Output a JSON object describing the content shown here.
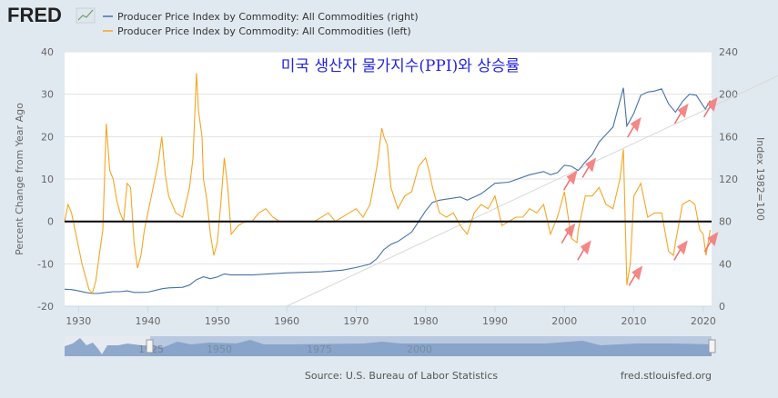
{
  "header": {
    "logo_text": "FRED",
    "legend": [
      {
        "label": "Producer Price Index by Commodity: All Commodities (right)",
        "color": "#4572a7"
      },
      {
        "label": "Producer Price Index by Commodity: All Commodities (left)",
        "color": "#f5a623"
      }
    ]
  },
  "footer": {
    "source": "Source: U.S. Bureau of Labor Statistics",
    "site": "fred.stlouisfed.org"
  },
  "navigator": {
    "labels": [
      "1925",
      "1950",
      "1975",
      "2000"
    ]
  },
  "chart_data": {
    "type": "line",
    "title": "미국 생산자 물가지수(PPI)와 상승률",
    "ylabel_left": "Percent Change from Year Ago",
    "ylabel_right": "Index 1982=100",
    "xlim": [
      1928,
      2021.2
    ],
    "ylim_left": [
      -20,
      40
    ],
    "ylim_right": [
      0,
      240
    ],
    "yticks_left": [
      "40",
      "30",
      "20",
      "10",
      "0",
      "-10",
      "-20"
    ],
    "yticks_right": [
      "240",
      "200",
      "160",
      "120",
      "80",
      "40",
      "0"
    ],
    "xticks": [
      "1930",
      "1940",
      "1950",
      "1960",
      "1970",
      "1980",
      "1990",
      "2000",
      "2010",
      "2020"
    ],
    "grid": true,
    "series": [
      {
        "name": "Producer Price Index by Commodity: All Commodities (right)",
        "axis": "right",
        "color": "#4572a7",
        "x": [
          1928,
          1929,
          1930,
          1931,
          1932,
          1933,
          1934,
          1935,
          1936,
          1937,
          1938,
          1939,
          1940,
          1941,
          1942,
          1943,
          1945,
          1946,
          1947,
          1948,
          1949,
          1950,
          1951,
          1952,
          1955,
          1960,
          1965,
          1968,
          1970,
          1972,
          1973,
          1974,
          1975,
          1976,
          1978,
          1980,
          1981,
          1982,
          1985,
          1986,
          1988,
          1990,
          1992,
          1995,
          1997,
          1998,
          1999,
          2000,
          2001,
          2002,
          2003,
          2004,
          2005,
          2006,
          2007,
          2008.5,
          2009,
          2010,
          2011,
          2012,
          2013,
          2014,
          2015,
          2016,
          2017,
          2018,
          2019,
          2020.3,
          2021
        ],
        "values": [
          16,
          15.7,
          14.5,
          13,
          12,
          12.2,
          13,
          13.7,
          13.7,
          14.5,
          13,
          13,
          13.3,
          14.8,
          16.5,
          17.3,
          17.8,
          20,
          25,
          27.8,
          26,
          27.5,
          30.5,
          29.5,
          29.5,
          31.5,
          32.5,
          34,
          36.5,
          39.8,
          45,
          53.5,
          58.4,
          61,
          69.9,
          89.8,
          98,
          100,
          103,
          100,
          106,
          116,
          117,
          124,
          127,
          124,
          126,
          133,
          132,
          128,
          136,
          143,
          155,
          162,
          169,
          206,
          170,
          182,
          199,
          202,
          203,
          205,
          191,
          183,
          193,
          200,
          199,
          186,
          194
        ]
      },
      {
        "name": "Producer Price Index by Commodity: All Commodities (left)",
        "axis": "left",
        "color": "#f5a623",
        "x": [
          1928,
          1928.5,
          1929,
          1929.5,
          1930,
          1930.5,
          1931,
          1931.5,
          1932,
          1932.5,
          1933,
          1933.5,
          1934,
          1934.5,
          1935,
          1935.5,
          1936,
          1936.5,
          1937,
          1937.5,
          1938,
          1938.5,
          1939,
          1939.5,
          1940,
          1941,
          1941.5,
          1942,
          1942.5,
          1943,
          1944,
          1945,
          1946,
          1946.5,
          1947,
          1947.3,
          1947.8,
          1948,
          1948.5,
          1949,
          1949.5,
          1950,
          1950.5,
          1951,
          1951.5,
          1952,
          1953,
          1954,
          1955,
          1956,
          1957,
          1958,
          1959,
          1960,
          1962,
          1964,
          1966,
          1967,
          1969,
          1970,
          1971,
          1972,
          1973,
          1973.7,
          1974,
          1974.5,
          1975,
          1976,
          1977,
          1978,
          1979,
          1980,
          1980.5,
          1981,
          1982,
          1983,
          1984,
          1985,
          1986,
          1987,
          1988,
          1989,
          1990,
          1991,
          1992,
          1993,
          1994,
          1995,
          1996,
          1997,
          1998,
          1999,
          2000,
          2001,
          2001.8,
          2002,
          2003,
          2004,
          2005,
          2006,
          2007,
          2008,
          2008.5,
          2009,
          2009.5,
          2010,
          2011,
          2012,
          2013,
          2014,
          2015,
          2015.7,
          2016,
          2017,
          2018,
          2018.8,
          2019.5,
          2020,
          2020.4,
          2021
        ],
        "values": [
          0,
          4,
          2,
          -2,
          -6,
          -10,
          -13,
          -16,
          -17,
          -14,
          -8,
          -2,
          23,
          12,
          10,
          5,
          2,
          0,
          9,
          8,
          -5,
          -11,
          -8,
          -2,
          2,
          10,
          14,
          20,
          11,
          6,
          2,
          1,
          8,
          15,
          35,
          26,
          20,
          10,
          5,
          -3,
          -8,
          -5,
          4,
          15,
          8,
          -3,
          -1,
          0,
          0,
          2,
          3,
          1,
          0,
          0,
          0,
          0,
          2,
          0,
          2,
          3,
          1,
          4,
          13,
          22,
          20,
          18,
          8,
          3,
          6,
          7,
          13,
          15,
          12,
          8,
          2,
          1,
          2,
          -1,
          -3,
          2,
          4,
          3,
          6,
          -1,
          0,
          1,
          1,
          3,
          2,
          4,
          -3,
          1,
          7,
          -4,
          -5,
          -2,
          6,
          6,
          8,
          4,
          3,
          10,
          17,
          -15,
          -10,
          6,
          9,
          1,
          2,
          2,
          -7,
          -8,
          -5,
          4,
          5,
          4,
          -2,
          -3,
          -8,
          -2
        ]
      },
      {
        "name": "Zero line",
        "axis": "left",
        "color": "#000000",
        "x": [
          1928,
          2021.2
        ],
        "values": [
          0,
          0
        ]
      }
    ],
    "annotations": {
      "arrows": [
        {
          "x": 2000.3,
          "y_right": 118,
          "target": "index-dip"
        },
        {
          "x": 2003,
          "y_right": 130,
          "target": "index-dip"
        },
        {
          "x": 2009.5,
          "y_right": 168,
          "target": "index-dip"
        },
        {
          "x": 2016.3,
          "y_right": 181,
          "target": "index-dip"
        },
        {
          "x": 2020.5,
          "y_right": 187,
          "target": "index-dip"
        },
        {
          "x": 2000,
          "y_left": -3,
          "target": "rate-dip"
        },
        {
          "x": 2002.3,
          "y_left": -7,
          "target": "rate-dip"
        },
        {
          "x": 2009.7,
          "y_left": -13,
          "target": "rate-dip"
        },
        {
          "x": 2016.2,
          "y_left": -7,
          "target": "rate-dip"
        },
        {
          "x": 2020.6,
          "y_left": -5,
          "target": "rate-dip"
        }
      ],
      "trendline": {
        "x": [
          1960,
          2021.2
        ],
        "y_right": [
          0,
          188
        ]
      }
    }
  }
}
